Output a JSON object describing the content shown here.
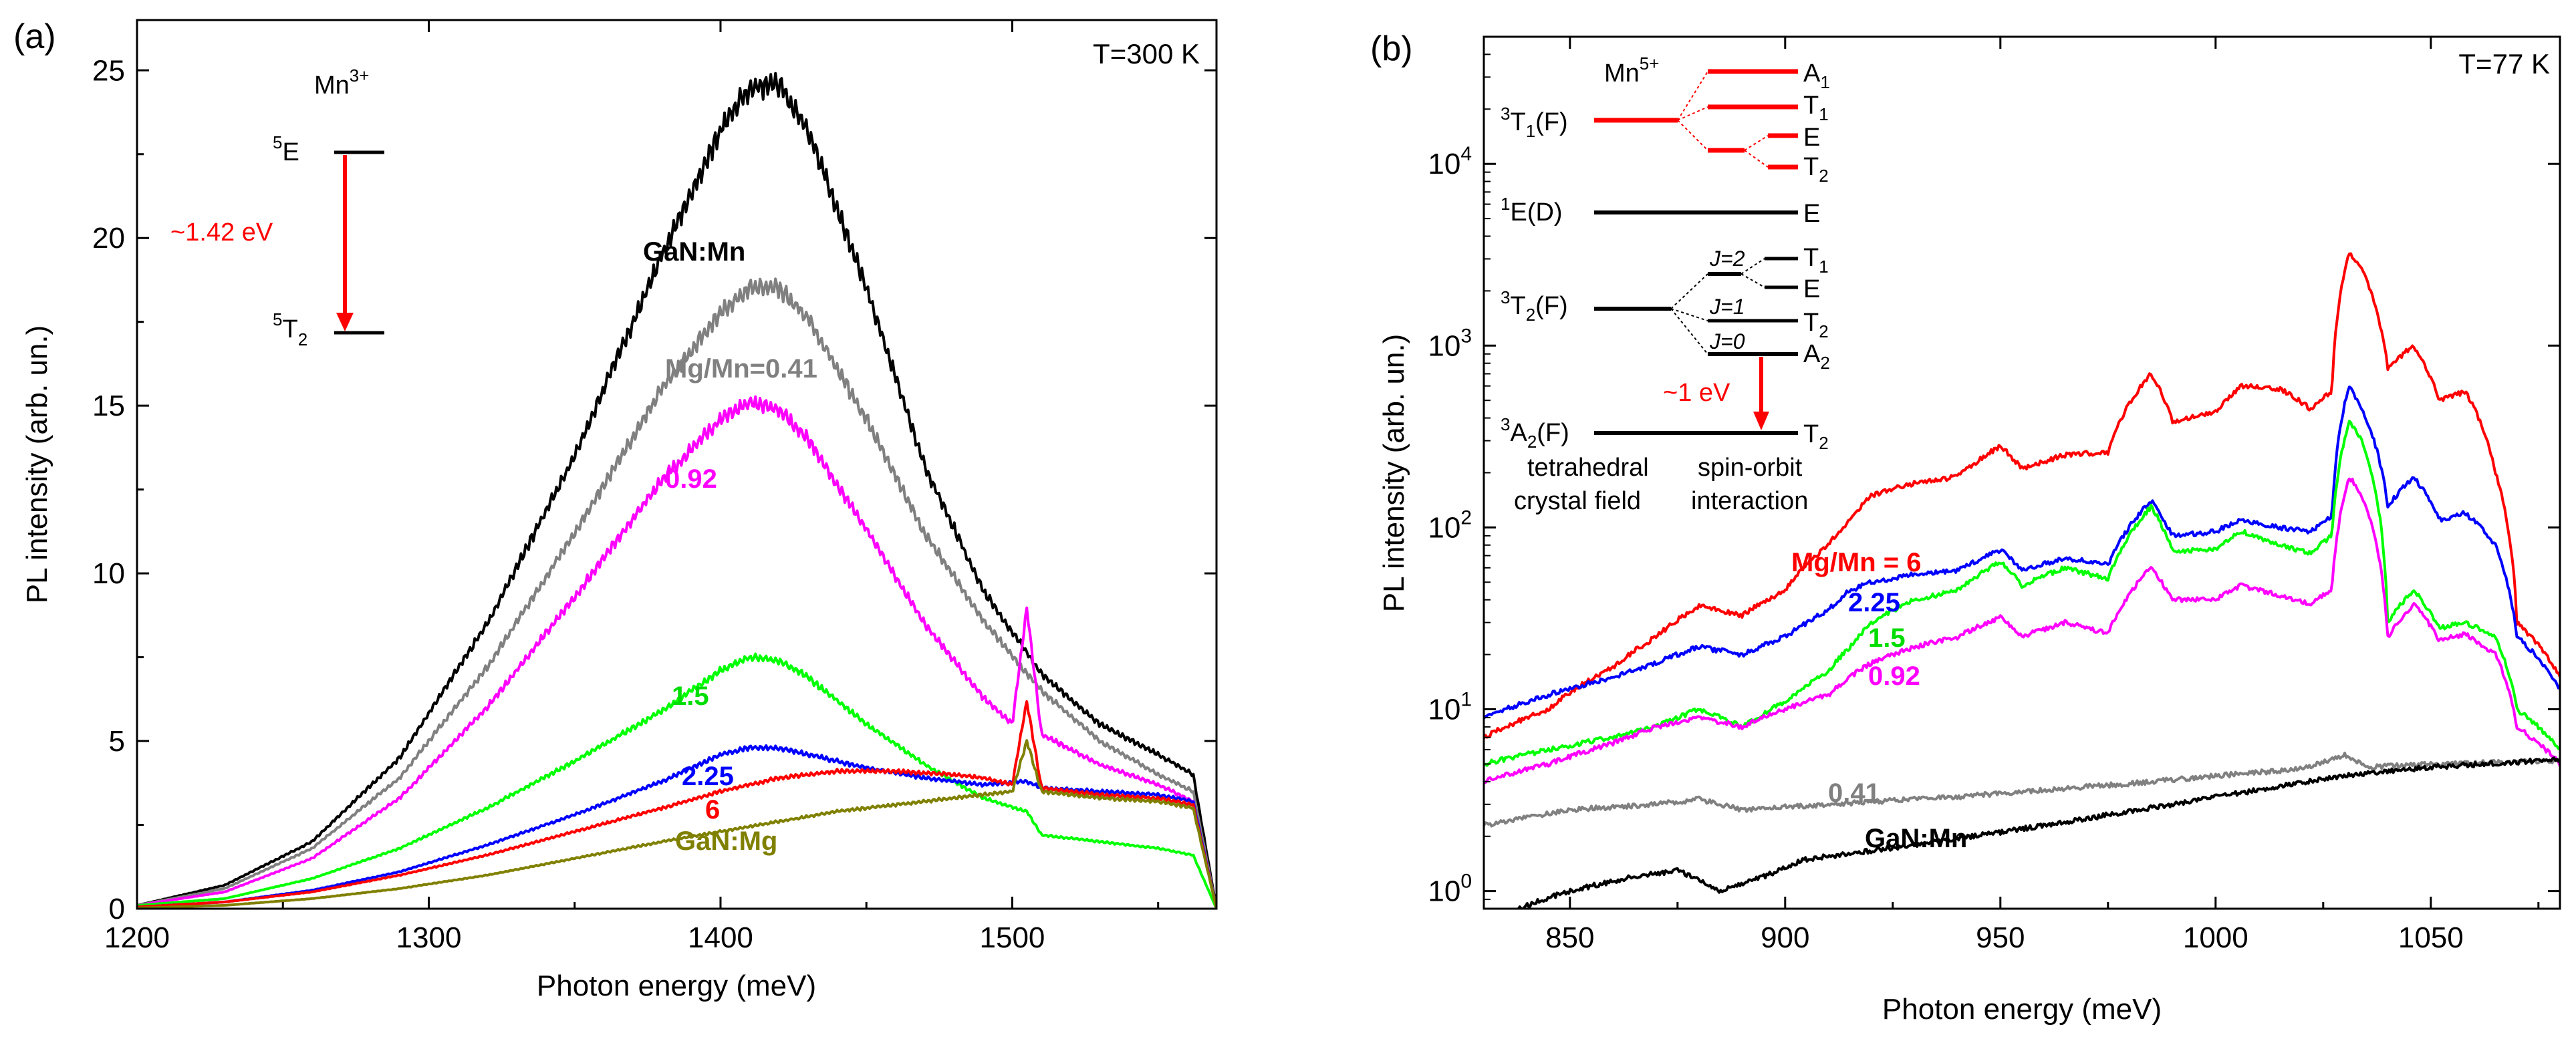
{
  "chart_data": [
    {
      "type": "line",
      "panel_label": "(a)",
      "annotation": "T=300 K",
      "xlabel": "Photon energy (meV)",
      "ylabel": "PL intensity (arb. un.)",
      "xlim": [
        1200,
        1570
      ],
      "ylim": [
        0,
        26.5
      ],
      "xticks": [
        1200,
        1300,
        1400,
        1500
      ],
      "yticks": [
        0,
        5,
        10,
        15,
        20,
        25
      ],
      "series": [
        {
          "name": "GaN:Mn",
          "color": "#000000",
          "x": [
            1200,
            1230,
            1260,
            1290,
            1320,
            1350,
            1380,
            1400,
            1410,
            1420,
            1430,
            1450,
            1470,
            1490,
            1510,
            1530,
            1550,
            1562,
            1570
          ],
          "y": [
            0.1,
            0.7,
            2.0,
            4.5,
            8.5,
            13.5,
            19.5,
            23.2,
            24.5,
            24.6,
            23.2,
            18.5,
            13.2,
            9.5,
            7.0,
            5.5,
            4.6,
            4.0,
            0.0
          ]
        },
        {
          "name": "Mg/Mn=0.41",
          "color": "#808080",
          "x": [
            1200,
            1230,
            1260,
            1290,
            1320,
            1350,
            1380,
            1400,
            1410,
            1420,
            1430,
            1450,
            1470,
            1490,
            1510,
            1530,
            1550,
            1562,
            1570
          ],
          "y": [
            0.1,
            0.6,
            1.8,
            3.9,
            7.2,
            11.2,
            15.5,
            17.8,
            18.5,
            18.5,
            17.6,
            14.6,
            11.2,
            8.6,
            6.5,
            5.0,
            4.0,
            3.5,
            0.0
          ]
        },
        {
          "name": "0.92",
          "color": "#ff00ff",
          "x": [
            1200,
            1230,
            1260,
            1290,
            1320,
            1350,
            1380,
            1400,
            1410,
            1420,
            1430,
            1450,
            1470,
            1490,
            1500,
            1505,
            1510,
            1530,
            1550,
            1562,
            1570
          ],
          "y": [
            0.1,
            0.5,
            1.5,
            3.3,
            6.0,
            9.3,
            12.8,
            14.6,
            15.1,
            14.9,
            14.0,
            11.3,
            8.5,
            6.3,
            5.5,
            9.0,
            5.2,
            4.3,
            3.7,
            3.2,
            0.0
          ]
        },
        {
          "name": "1.5",
          "color": "#00ff00",
          "x": [
            1200,
            1230,
            1260,
            1290,
            1320,
            1350,
            1380,
            1400,
            1410,
            1420,
            1430,
            1450,
            1470,
            1490,
            1505,
            1510,
            1530,
            1550,
            1562,
            1570
          ],
          "y": [
            0.1,
            0.3,
            0.9,
            1.8,
            3.0,
            4.4,
            5.9,
            7.1,
            7.5,
            7.4,
            6.9,
            5.5,
            4.3,
            3.3,
            2.9,
            2.2,
            2.0,
            1.8,
            1.6,
            0.0
          ]
        },
        {
          "name": "2.25",
          "color": "#0000ff",
          "x": [
            1200,
            1230,
            1260,
            1290,
            1320,
            1350,
            1380,
            1400,
            1410,
            1420,
            1430,
            1450,
            1470,
            1490,
            1505,
            1510,
            1530,
            1550,
            1562,
            1570
          ],
          "y": [
            0.05,
            0.2,
            0.55,
            1.1,
            1.9,
            2.8,
            3.8,
            4.6,
            4.8,
            4.8,
            4.6,
            4.2,
            3.9,
            3.7,
            3.8,
            3.6,
            3.5,
            3.4,
            3.2,
            0.0
          ]
        },
        {
          "name": "6",
          "color": "#ff0000",
          "x": [
            1200,
            1230,
            1260,
            1290,
            1320,
            1350,
            1380,
            1400,
            1420,
            1440,
            1460,
            1480,
            1490,
            1500,
            1505,
            1510,
            1530,
            1550,
            1562,
            1570
          ],
          "y": [
            0.05,
            0.2,
            0.5,
            1.0,
            1.6,
            2.3,
            3.0,
            3.5,
            3.9,
            4.1,
            4.1,
            4.0,
            3.9,
            3.7,
            6.2,
            3.6,
            3.4,
            3.3,
            3.1,
            0.0
          ]
        },
        {
          "name": "GaN:Mg",
          "color": "#808000",
          "x": [
            1200,
            1230,
            1260,
            1290,
            1320,
            1350,
            1380,
            1400,
            1420,
            1440,
            1460,
            1480,
            1500,
            1505,
            1510,
            1530,
            1550,
            1562,
            1570
          ],
          "y": [
            0.02,
            0.1,
            0.3,
            0.6,
            1.0,
            1.5,
            2.0,
            2.3,
            2.6,
            2.9,
            3.1,
            3.3,
            3.5,
            5.0,
            3.5,
            3.3,
            3.2,
            3.0,
            0.0
          ]
        }
      ],
      "series_labels": [
        "GaN:Mn",
        "Mg/Mn=0.41",
        "0.92",
        "1.5",
        "2.25",
        "6",
        "GaN:Mg"
      ],
      "inset": {
        "ion": "Mn",
        "ion_charge": "3+",
        "upper_state": {
          "sup": "5",
          "name": "E"
        },
        "lower_state": {
          "sup": "5",
          "name": "T",
          "sub": "2"
        },
        "transition": "~1.42 eV",
        "arrow_color": "#ff0000"
      }
    },
    {
      "type": "line",
      "panel_label": "(b)",
      "annotation": "T=77 K",
      "xlabel": "Photon energy (meV)",
      "ylabel": "PL intensity (arb. un.)",
      "yscale": "log",
      "xlim": [
        830,
        1080
      ],
      "ylim": [
        0.8,
        50000
      ],
      "xticks": [
        850,
        900,
        950,
        1000,
        1050
      ],
      "yticks": [
        1,
        10,
        100,
        1000,
        10000
      ],
      "ytick_labels": [
        {
          "base": "10",
          "exp": "0"
        },
        {
          "base": "10",
          "exp": "1"
        },
        {
          "base": "10",
          "exp": "2"
        },
        {
          "base": "10",
          "exp": "3"
        },
        {
          "base": "10",
          "exp": "4"
        }
      ],
      "series": [
        {
          "name": "Mg/Mn = 6",
          "color": "#ff0000",
          "x": [
            830,
            845,
            860,
            870,
            880,
            890,
            900,
            910,
            915,
            920,
            930,
            940,
            950,
            955,
            965,
            975,
            985,
            990,
            1000,
            1006,
            1015,
            1022,
            1027,
            1031,
            1034,
            1040,
            1046,
            1052,
            1058,
            1065,
            1070,
            1080
          ],
          "y": [
            7,
            10,
            17,
            25,
            37,
            33,
            45,
            80,
            110,
            150,
            175,
            190,
            280,
            210,
            250,
            260,
            700,
            380,
            430,
            600,
            580,
            450,
            560,
            3300,
            2600,
            750,
            1000,
            500,
            560,
            200,
            30,
            15
          ]
        },
        {
          "name": "2.25",
          "color": "#0000ff",
          "x": [
            830,
            845,
            860,
            870,
            880,
            890,
            900,
            910,
            915,
            920,
            930,
            940,
            950,
            955,
            965,
            975,
            985,
            990,
            1000,
            1006,
            1015,
            1022,
            1027,
            1031,
            1034,
            1040,
            1046,
            1052,
            1058,
            1065,
            1070,
            1080
          ],
          "y": [
            9,
            12,
            15,
            18,
            22,
            20,
            25,
            35,
            45,
            50,
            55,
            58,
            75,
            58,
            68,
            62,
            140,
            90,
            95,
            110,
            100,
            95,
            115,
            600,
            450,
            130,
            190,
            110,
            120,
            80,
            25,
            13
          ]
        },
        {
          "name": "1.5",
          "color": "#00ff00",
          "x": [
            830,
            845,
            860,
            870,
            880,
            890,
            900,
            910,
            915,
            920,
            930,
            940,
            950,
            955,
            965,
            975,
            985,
            990,
            1000,
            1006,
            1015,
            1022,
            1027,
            1031,
            1034,
            1040,
            1046,
            1052,
            1058,
            1065,
            1070,
            1080
          ],
          "y": [
            5,
            6,
            7,
            8,
            10,
            8,
            11,
            16,
            22,
            30,
            40,
            45,
            65,
            48,
            60,
            52,
            130,
            75,
            75,
            95,
            80,
            72,
            90,
            380,
            300,
            30,
            45,
            28,
            30,
            25,
            10,
            6
          ]
        },
        {
          "name": "0.92",
          "color": "#ff00ff",
          "x": [
            830,
            845,
            860,
            870,
            880,
            890,
            900,
            910,
            915,
            920,
            930,
            940,
            950,
            955,
            965,
            975,
            985,
            990,
            1000,
            1006,
            1015,
            1022,
            1027,
            1031,
            1034,
            1040,
            1046,
            1052,
            1058,
            1065,
            1070,
            1080
          ],
          "y": [
            4,
            5,
            6.5,
            8,
            9,
            8,
            10,
            12,
            15,
            18,
            22,
            25,
            32,
            25,
            30,
            26,
            60,
            40,
            40,
            48,
            42,
            38,
            45,
            190,
            150,
            25,
            38,
            24,
            26,
            20,
            8,
            5
          ]
        },
        {
          "name": "0.41",
          "color": "#808080",
          "x": [
            830,
            850,
            870,
            880,
            890,
            900,
            920,
            940,
            960,
            980,
            1000,
            1020,
            1030,
            1035,
            1050,
            1080
          ],
          "y": [
            2.3,
            2.8,
            3.0,
            3.2,
            2.8,
            2.9,
            3.1,
            3.3,
            3.6,
            3.9,
            4.3,
            4.7,
            5.6,
            4.8,
            5.0,
            5.2
          ]
        },
        {
          "name": "GaN:Mn",
          "color": "#000000",
          "x": [
            838,
            850,
            865,
            875,
            885,
            895,
            905,
            915,
            930,
            950,
            970,
            990,
            1010,
            1030,
            1050,
            1080
          ],
          "y": [
            0.8,
            1.0,
            1.2,
            1.3,
            1.0,
            1.2,
            1.5,
            1.6,
            1.8,
            2.1,
            2.5,
            3.0,
            3.6,
            4.3,
            4.8,
            5.3
          ]
        }
      ],
      "series_labels": [
        "Mg/Mn = 6",
        "2.25",
        "1.5",
        "0.92",
        "0.41",
        "GaN:Mn"
      ],
      "inset": {
        "ion": "Mn",
        "ion_charge": "5+",
        "levels": [
          {
            "sup": "3",
            "name": "T",
            "sub": "1",
            "tail": "(F)"
          },
          {
            "sup": "1",
            "name": "E",
            "sub": "",
            "tail": "(D)"
          },
          {
            "sup": "3",
            "name": "T",
            "sub": "2",
            "tail": "(F)"
          },
          {
            "sup": "3",
            "name": "A",
            "sub": "2",
            "tail": "(F)"
          }
        ],
        "t1_splitting": [
          {
            "name": "A",
            "sub": "1"
          },
          {
            "name": "T",
            "sub": "1"
          },
          {
            "name": "E",
            "sub": ""
          },
          {
            "name": "T",
            "sub": "2"
          }
        ],
        "e_level_label": "E",
        "t2_splitting": [
          {
            "name": "T",
            "sub": "1"
          },
          {
            "name": "E",
            "sub": ""
          },
          {
            "name": "T",
            "sub": "2"
          },
          {
            "name": "A",
            "sub": "2"
          }
        ],
        "j_labels": [
          "J=2",
          "J=1",
          "J=0"
        ],
        "ground_label": {
          "name": "T",
          "sub": "2"
        },
        "transition": "~1 eV",
        "caption_left": [
          "tetrahedral",
          "crystal field"
        ],
        "caption_right": [
          "spin-orbit",
          "interaction"
        ],
        "red_color": "#ff0000"
      }
    }
  ]
}
